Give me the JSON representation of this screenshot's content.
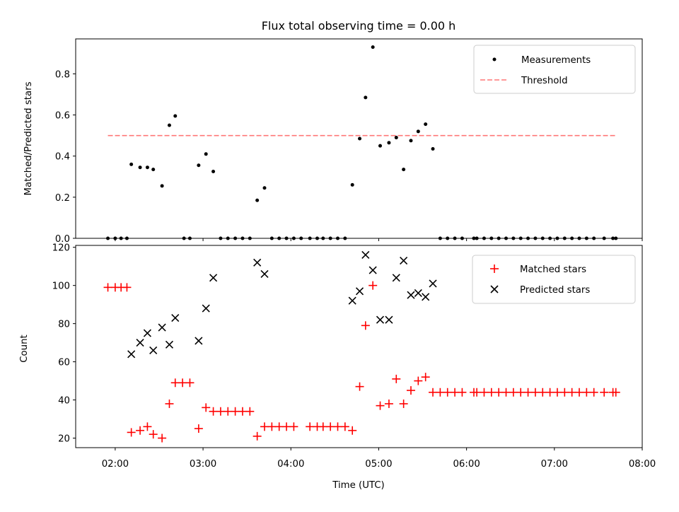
{
  "chart_data": [
    {
      "type": "scatter",
      "title": "Flux total observing time = 0.00 h",
      "xlabel": "",
      "ylabel": "Matched/Predicted stars",
      "xlim": [
        "01:33",
        "08:00"
      ],
      "ylim": [
        0,
        0.97
      ],
      "yticks": [
        0.0,
        0.2,
        0.4,
        0.6,
        0.8
      ],
      "ytick_labels": [
        "0.0",
        "0.2",
        "0.4",
        "0.6",
        "0.8"
      ],
      "legend_position": "top-right",
      "legend": [
        {
          "label": "Measurements",
          "marker": "dot",
          "color": "#000000"
        },
        {
          "label": "Threshold",
          "marker": "dashed-line",
          "color": "#ff7777"
        }
      ],
      "threshold": {
        "value": 0.5,
        "x": [
          "01:55",
          "07:42"
        ],
        "color": "#ff7777"
      },
      "series": [
        {
          "name": "Measurements",
          "color": "#000000",
          "points": [
            [
              "01:55",
              0.0
            ],
            [
              "02:00",
              0.0
            ],
            [
              "02:04",
              0.0
            ],
            [
              "02:08",
              0.0
            ],
            [
              "02:11",
              0.36
            ],
            [
              "02:17",
              0.345
            ],
            [
              "02:22",
              0.345
            ],
            [
              "02:26",
              0.335
            ],
            [
              "02:32",
              0.255
            ],
            [
              "02:37",
              0.55
            ],
            [
              "02:41",
              0.595
            ],
            [
              "02:47",
              0.0
            ],
            [
              "02:51",
              0.0
            ],
            [
              "02:57",
              0.355
            ],
            [
              "03:02",
              0.41
            ],
            [
              "03:07",
              0.325
            ],
            [
              "03:12",
              0.0
            ],
            [
              "03:17",
              0.0
            ],
            [
              "03:22",
              0.0
            ],
            [
              "03:27",
              0.0
            ],
            [
              "03:32",
              0.0
            ],
            [
              "03:37",
              0.185
            ],
            [
              "03:42",
              0.245
            ],
            [
              "03:47",
              0.0
            ],
            [
              "03:52",
              0.0
            ],
            [
              "03:57",
              0.0
            ],
            [
              "04:02",
              0.0
            ],
            [
              "04:07",
              0.0
            ],
            [
              "04:13",
              0.0
            ],
            [
              "04:18",
              0.0
            ],
            [
              "04:22",
              0.0
            ],
            [
              "04:27",
              0.0
            ],
            [
              "04:32",
              0.0
            ],
            [
              "04:37",
              0.0
            ],
            [
              "04:42",
              0.26
            ],
            [
              "04:47",
              0.485
            ],
            [
              "04:51",
              0.685
            ],
            [
              "04:56",
              0.93
            ],
            [
              "05:01",
              0.45
            ],
            [
              "05:07",
              0.465
            ],
            [
              "05:12",
              0.49
            ],
            [
              "05:17",
              0.335
            ],
            [
              "05:22",
              0.475
            ],
            [
              "05:27",
              0.52
            ],
            [
              "05:32",
              0.555
            ],
            [
              "05:37",
              0.435
            ],
            [
              "05:42",
              0.0
            ],
            [
              "05:47",
              0.0
            ],
            [
              "05:52",
              0.0
            ],
            [
              "05:57",
              0.0
            ],
            [
              "06:05",
              0.0
            ],
            [
              "06:07",
              0.0
            ],
            [
              "06:12",
              0.0
            ],
            [
              "06:17",
              0.0
            ],
            [
              "06:22",
              0.0
            ],
            [
              "06:27",
              0.0
            ],
            [
              "06:32",
              0.0
            ],
            [
              "06:37",
              0.0
            ],
            [
              "06:42",
              0.0
            ],
            [
              "06:47",
              0.0
            ],
            [
              "06:52",
              0.0
            ],
            [
              "06:57",
              0.0
            ],
            [
              "07:02",
              0.0
            ],
            [
              "07:07",
              0.0
            ],
            [
              "07:12",
              0.0
            ],
            [
              "07:17",
              0.0
            ],
            [
              "07:22",
              0.0
            ],
            [
              "07:27",
              0.0
            ],
            [
              "07:34",
              0.0
            ],
            [
              "07:40",
              0.0
            ],
            [
              "07:42",
              0.0
            ]
          ]
        }
      ]
    },
    {
      "type": "scatter",
      "title": "",
      "xlabel": "Time (UTC)",
      "ylabel": "Count",
      "xlim": [
        "01:33",
        "08:00"
      ],
      "ylim": [
        15,
        121
      ],
      "yticks": [
        20,
        40,
        60,
        80,
        100,
        120
      ],
      "ytick_labels": [
        "20",
        "40",
        "60",
        "80",
        "100",
        "120"
      ],
      "xticks": [
        "02:00",
        "03:00",
        "04:00",
        "05:00",
        "06:00",
        "07:00",
        "08:00"
      ],
      "xtick_labels": [
        "02:00",
        "03:00",
        "04:00",
        "05:00",
        "06:00",
        "07:00",
        "08:00"
      ],
      "legend_position": "top-right",
      "legend": [
        {
          "label": "Matched stars",
          "marker": "plus",
          "color": "#ff0000"
        },
        {
          "label": "Predicted stars",
          "marker": "x",
          "color": "#000000"
        }
      ],
      "series": [
        {
          "name": "Matched stars",
          "marker": "plus",
          "color": "#ff0000",
          "points": [
            [
              "01:55",
              99
            ],
            [
              "02:00",
              99
            ],
            [
              "02:04",
              99
            ],
            [
              "02:08",
              99
            ],
            [
              "02:11",
              23
            ],
            [
              "02:17",
              24
            ],
            [
              "02:22",
              26
            ],
            [
              "02:26",
              22
            ],
            [
              "02:32",
              20
            ],
            [
              "02:37",
              38
            ],
            [
              "02:41",
              49
            ],
            [
              "02:46",
              49
            ],
            [
              "02:51",
              49
            ],
            [
              "02:57",
              25
            ],
            [
              "03:02",
              36
            ],
            [
              "03:07",
              34
            ],
            [
              "03:12",
              34
            ],
            [
              "03:17",
              34
            ],
            [
              "03:22",
              34
            ],
            [
              "03:27",
              34
            ],
            [
              "03:32",
              34
            ],
            [
              "03:37",
              21
            ],
            [
              "03:42",
              26
            ],
            [
              "03:47",
              26
            ],
            [
              "03:52",
              26
            ],
            [
              "03:57",
              26
            ],
            [
              "04:02",
              26
            ],
            [
              "04:13",
              26
            ],
            [
              "04:18",
              26
            ],
            [
              "04:22",
              26
            ],
            [
              "04:27",
              26
            ],
            [
              "04:32",
              26
            ],
            [
              "04:37",
              26
            ],
            [
              "04:42",
              24
            ],
            [
              "04:47",
              47
            ],
            [
              "04:51",
              79
            ],
            [
              "04:56",
              100
            ],
            [
              "05:01",
              37
            ],
            [
              "05:07",
              38
            ],
            [
              "05:12",
              51
            ],
            [
              "05:17",
              38
            ],
            [
              "05:22",
              45
            ],
            [
              "05:27",
              50
            ],
            [
              "05:32",
              52
            ],
            [
              "05:37",
              44
            ],
            [
              "05:42",
              44
            ],
            [
              "05:47",
              44
            ],
            [
              "05:52",
              44
            ],
            [
              "05:57",
              44
            ],
            [
              "06:05",
              44
            ],
            [
              "06:07",
              44
            ],
            [
              "06:12",
              44
            ],
            [
              "06:17",
              44
            ],
            [
              "06:22",
              44
            ],
            [
              "06:27",
              44
            ],
            [
              "06:32",
              44
            ],
            [
              "06:37",
              44
            ],
            [
              "06:42",
              44
            ],
            [
              "06:47",
              44
            ],
            [
              "06:52",
              44
            ],
            [
              "06:57",
              44
            ],
            [
              "07:02",
              44
            ],
            [
              "07:07",
              44
            ],
            [
              "07:12",
              44
            ],
            [
              "07:17",
              44
            ],
            [
              "07:22",
              44
            ],
            [
              "07:27",
              44
            ],
            [
              "07:34",
              44
            ],
            [
              "07:40",
              44
            ],
            [
              "07:42",
              44
            ]
          ]
        },
        {
          "name": "Predicted stars",
          "marker": "x",
          "color": "#000000",
          "points": [
            [
              "02:11",
              64
            ],
            [
              "02:17",
              70
            ],
            [
              "02:22",
              75
            ],
            [
              "02:26",
              66
            ],
            [
              "02:32",
              78
            ],
            [
              "02:37",
              69
            ],
            [
              "02:41",
              83
            ],
            [
              "02:57",
              71
            ],
            [
              "03:02",
              88
            ],
            [
              "03:07",
              104
            ],
            [
              "03:37",
              112
            ],
            [
              "03:42",
              106
            ],
            [
              "04:42",
              92
            ],
            [
              "04:47",
              97
            ],
            [
              "04:51",
              116
            ],
            [
              "04:56",
              108
            ],
            [
              "05:01",
              82
            ],
            [
              "05:07",
              82
            ],
            [
              "05:12",
              104
            ],
            [
              "05:17",
              113
            ],
            [
              "05:22",
              95
            ],
            [
              "05:27",
              96
            ],
            [
              "05:32",
              94
            ],
            [
              "05:37",
              101
            ]
          ]
        }
      ]
    }
  ]
}
